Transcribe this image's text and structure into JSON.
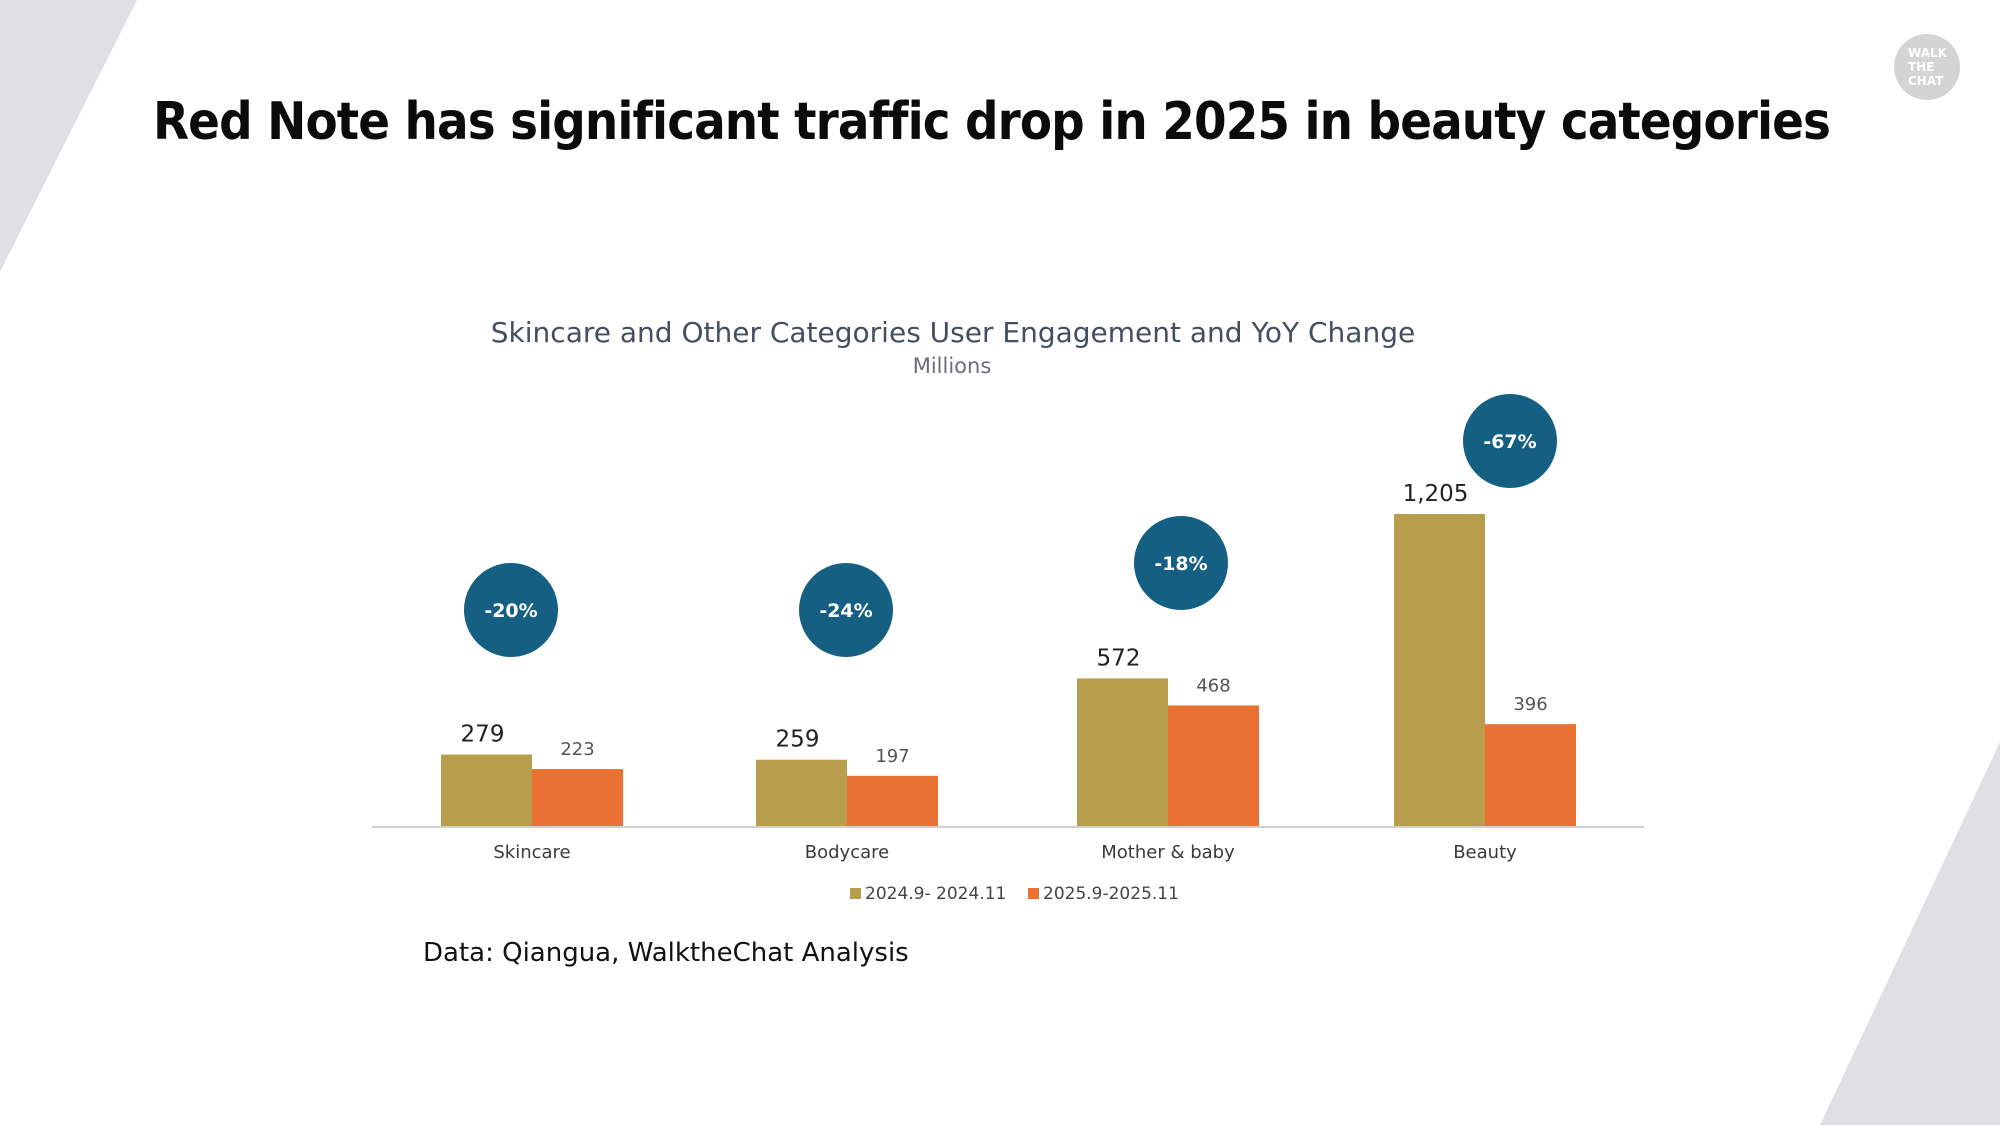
{
  "slide": {
    "title": "Red Note has significant traffic drop in 2025 in beauty categories",
    "logo": [
      "WALK",
      "THE",
      "CHAT"
    ],
    "source": "Data: Qiangua, WalktheChat Analysis"
  },
  "colors": {
    "series_2024": "#b89e4c",
    "series_2025": "#e87133",
    "badge": "#155f82",
    "deco": "#dee0e4",
    "axis": "#d0d0d0",
    "chart_title": "#44505f"
  },
  "chart_data": {
    "type": "bar",
    "title": "Skincare and Other Categories User Engagement and YoY Change",
    "subtitle": "Millions",
    "xlabel": "",
    "ylabel": "",
    "ylim": [
      0,
      1205
    ],
    "grid": false,
    "legend_position": "bottom",
    "categories": [
      "Skincare",
      "Bodycare",
      "Mother & baby",
      "Beauty"
    ],
    "series": [
      {
        "name": "2024.9- 2024.11",
        "values": [
          279,
          259,
          572,
          1205
        ],
        "labels": [
          "279",
          "259",
          "572",
          "1,205"
        ]
      },
      {
        "name": "2025.9-2025.11",
        "values": [
          223,
          197,
          468,
          396
        ],
        "labels": [
          "223",
          "197",
          "468",
          "396"
        ]
      }
    ],
    "annotations": {
      "type": "yoy_change_badges",
      "values": [
        "-20%",
        "-24%",
        "-18%",
        "-67%"
      ]
    }
  }
}
